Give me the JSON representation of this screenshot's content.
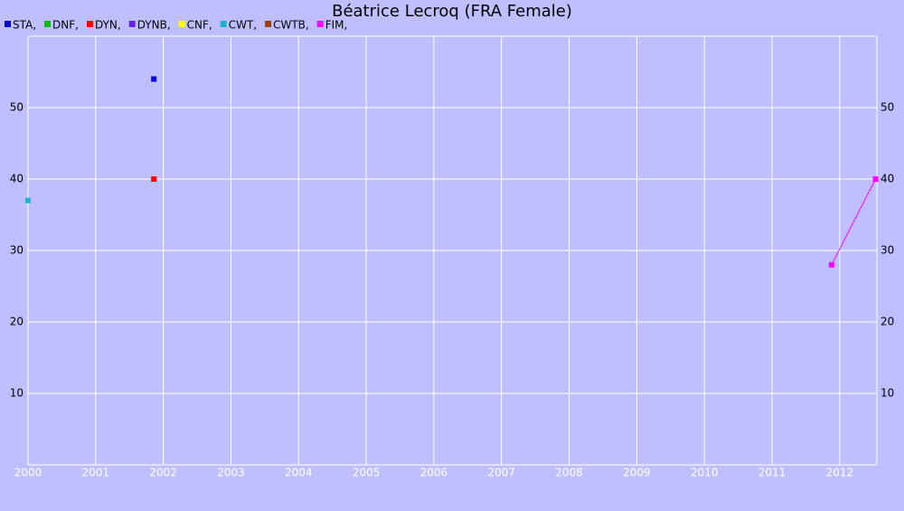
{
  "chart_data": {
    "type": "line",
    "title": "Béatrice Lecroq (FRA Female)",
    "xlim": [
      2000,
      2012.55
    ],
    "xticks": [
      2000,
      2001,
      2002,
      2003,
      2004,
      2005,
      2006,
      2007,
      2008,
      2009,
      2010,
      2011,
      2012
    ],
    "ylim": [
      0,
      60
    ],
    "yticks": [
      10,
      20,
      30,
      40,
      50
    ],
    "grid": true,
    "series": [
      {
        "name": "STA,",
        "color": "#0000e0",
        "x": [
          2001.86
        ],
        "values": [
          54
        ]
      },
      {
        "name": "DNF,",
        "color": "#00c000",
        "x": [],
        "values": []
      },
      {
        "name": "DYN,",
        "color": "#ff0000",
        "x": [
          2001.86
        ],
        "values": [
          40
        ]
      },
      {
        "name": "DYNB,",
        "color": "#6a20e8",
        "x": [],
        "values": []
      },
      {
        "name": "CNF,",
        "color": "#ffff00",
        "x": [],
        "values": []
      },
      {
        "name": "CWT,",
        "color": "#20b0d0",
        "x": [
          2000
        ],
        "values": [
          37
        ]
      },
      {
        "name": "CWTB,",
        "color": "#a04000",
        "x": [],
        "values": []
      },
      {
        "name": "FIM,",
        "color": "#ff00ff",
        "x": [
          2011.88,
          2012.53
        ],
        "values": [
          28,
          40
        ]
      }
    ]
  }
}
